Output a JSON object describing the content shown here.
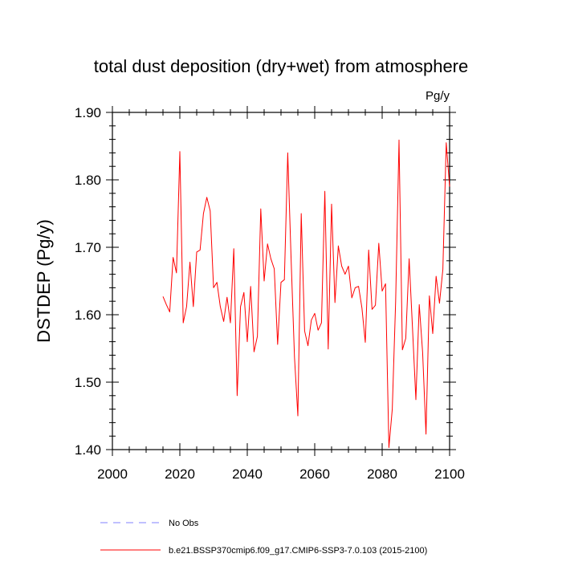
{
  "chart_data": {
    "type": "line",
    "title": "total dust deposition (dry+wet) from atmosphere",
    "units_label": "Pg/y",
    "ylabel": "DSTDEP  (Pg/y)",
    "xlabel": "",
    "xlim": [
      2000,
      2100
    ],
    "ylim": [
      1.4,
      1.9
    ],
    "x_ticks": [
      2000,
      2020,
      2040,
      2060,
      2080,
      2100
    ],
    "x_tick_labels": [
      "2000",
      "2020",
      "2040",
      "2060",
      "2080",
      "2100"
    ],
    "y_ticks": [
      1.4,
      1.5,
      1.6,
      1.7,
      1.8,
      1.9
    ],
    "y_tick_labels": [
      "1.40",
      "1.50",
      "1.60",
      "1.70",
      "1.80",
      "1.90"
    ],
    "grid": false,
    "legend_position": "bottom-left",
    "series": [
      {
        "name": "b.e21.BSSP370cmip6.f09_g17.CMIP6-SSP3-7.0.103 (2015-2100)",
        "color": "#ff0000",
        "style": "solid",
        "x": [
          2015,
          2016,
          2017,
          2018,
          2019,
          2020,
          2021,
          2022,
          2023,
          2024,
          2025,
          2026,
          2027,
          2028,
          2029,
          2030,
          2031,
          2032,
          2033,
          2034,
          2035,
          2036,
          2037,
          2038,
          2039,
          2040,
          2041,
          2042,
          2043,
          2044,
          2045,
          2046,
          2047,
          2048,
          2049,
          2050,
          2051,
          2052,
          2053,
          2054,
          2055,
          2056,
          2057,
          2058,
          2059,
          2060,
          2061,
          2062,
          2063,
          2064,
          2065,
          2066,
          2067,
          2068,
          2069,
          2070,
          2071,
          2072,
          2073,
          2074,
          2075,
          2076,
          2077,
          2078,
          2079,
          2080,
          2081,
          2082,
          2083,
          2084,
          2085,
          2086,
          2087,
          2088,
          2089,
          2090,
          2091,
          2092,
          2093,
          2094,
          2095,
          2096,
          2097,
          2098,
          2099,
          2100
        ],
        "y": [
          1.627,
          1.615,
          1.604,
          1.685,
          1.662,
          1.842,
          1.588,
          1.612,
          1.678,
          1.612,
          1.693,
          1.696,
          1.75,
          1.774,
          1.754,
          1.64,
          1.648,
          1.612,
          1.59,
          1.626,
          1.588,
          1.698,
          1.48,
          1.612,
          1.633,
          1.56,
          1.642,
          1.545,
          1.568,
          1.757,
          1.65,
          1.705,
          1.683,
          1.668,
          1.556,
          1.648,
          1.652,
          1.84,
          1.682,
          1.537,
          1.45,
          1.75,
          1.576,
          1.554,
          1.592,
          1.602,
          1.577,
          1.588,
          1.783,
          1.549,
          1.764,
          1.618,
          1.702,
          1.672,
          1.66,
          1.672,
          1.625,
          1.64,
          1.642,
          1.61,
          1.559,
          1.696,
          1.608,
          1.614,
          1.706,
          1.635,
          1.646,
          1.403,
          1.46,
          1.62,
          1.859,
          1.548,
          1.565,
          1.683,
          1.58,
          1.474,
          1.615,
          1.544,
          1.423,
          1.628,
          1.572,
          1.657,
          1.617,
          1.667,
          1.855,
          1.79
        ]
      },
      {
        "name": "No Obs",
        "color": "#8080ff",
        "style": "dashed",
        "x": [],
        "y": []
      }
    ]
  }
}
